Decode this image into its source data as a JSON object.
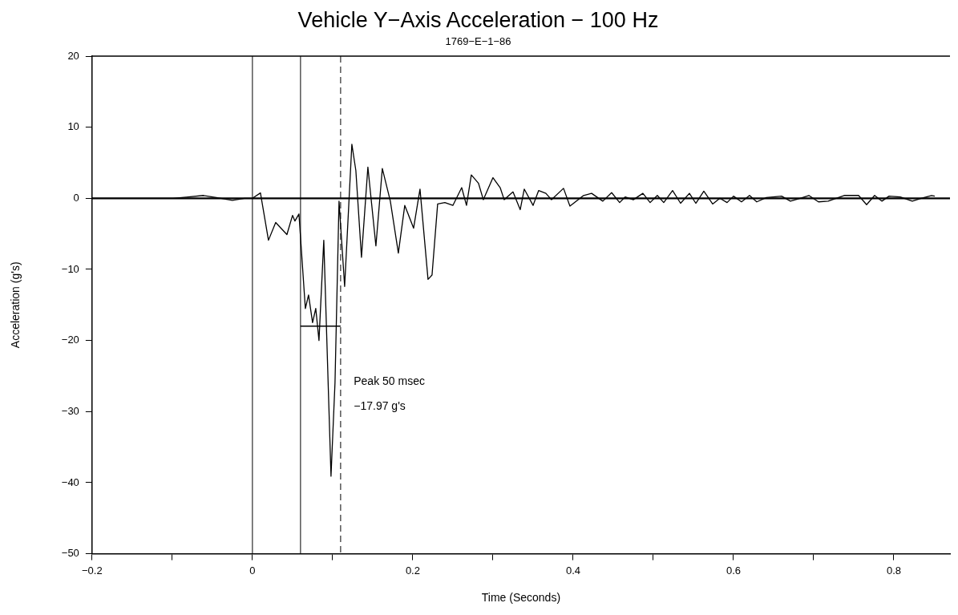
{
  "chart_data": {
    "type": "line",
    "title": "Vehicle Y−Axis Acceleration − 100 Hz",
    "subtitle": "1769−E−1−86",
    "xlabel": "Time (Seconds)",
    "ylabel": "Acceleration (g's)",
    "annotations": [
      "Peak 50 msec",
      "−17.97 g's"
    ],
    "series": [
      {
        "color": "#000000",
        "x": [
          -0.2,
          -0.15,
          -0.099,
          -0.08,
          -0.061,
          -0.045,
          -0.025,
          -0.01,
          0,
          0.01,
          0.02,
          0.029,
          0.043,
          0.05,
          0.053,
          0.058,
          0.066,
          0.07,
          0.075,
          0.079,
          0.083,
          0.089,
          0.098,
          0.103,
          0.108,
          0.115,
          0.124,
          0.129,
          0.136,
          0.144,
          0.154,
          0.162,
          0.172,
          0.182,
          0.19,
          0.201,
          0.209,
          0.219,
          0.224,
          0.231,
          0.24,
          0.25,
          0.261,
          0.267,
          0.273,
          0.282,
          0.288,
          0.3,
          0.309,
          0.314,
          0.325,
          0.334,
          0.339,
          0.35,
          0.357,
          0.366,
          0.373,
          0.388,
          0.396,
          0.413,
          0.423,
          0.437,
          0.448,
          0.458,
          0.465,
          0.475,
          0.487,
          0.496,
          0.505,
          0.513,
          0.524,
          0.534,
          0.545,
          0.553,
          0.563,
          0.574,
          0.583,
          0.592,
          0.6,
          0.61,
          0.62,
          0.629,
          0.641,
          0.66,
          0.671,
          0.683,
          0.694,
          0.706,
          0.718,
          0.738,
          0.756,
          0.766,
          0.776,
          0.785,
          0.794,
          0.808,
          0.823,
          0.834,
          0.847,
          0.851
        ],
        "values": [
          0,
          0,
          0,
          0.2,
          0.4,
          0.1,
          -0.3,
          0,
          0,
          0.75,
          -5.9,
          -3.4,
          -5.1,
          -2.4,
          -3.2,
          -2.2,
          -15.5,
          -13.6,
          -17.5,
          -15.5,
          -20,
          -5.9,
          -39.1,
          -25.9,
          -0.4,
          -12.4,
          7.6,
          3.9,
          -8.3,
          4.4,
          -6.7,
          4.2,
          -0.4,
          -7.7,
          -1,
          -4.2,
          1.3,
          -11.4,
          -10.8,
          -0.8,
          -0.6,
          -1,
          1.5,
          -1,
          3.3,
          2.1,
          -0.2,
          2.9,
          1.5,
          -0.2,
          0.9,
          -1.6,
          1.3,
          -1,
          1.1,
          0.7,
          -0.2,
          1.4,
          -1.1,
          0.4,
          0.7,
          -0.4,
          0.8,
          -0.6,
          0.2,
          -0.2,
          0.7,
          -0.6,
          0.4,
          -0.6,
          1.1,
          -0.7,
          0.7,
          -0.7,
          1,
          -0.8,
          0,
          -0.6,
          0.3,
          -0.5,
          0.4,
          -0.5,
          0.1,
          0.3,
          -0.4,
          0,
          0.4,
          -0.5,
          -0.4,
          0.4,
          0.4,
          -0.9,
          0.4,
          -0.4,
          0.3,
          0.2,
          -0.4,
          0,
          0.4,
          0.3
        ]
      },
      {
        "color": "#000000",
        "x": [
          0.06,
          0.11
        ],
        "values": [
          -17.97,
          -17.97
        ]
      }
    ],
    "ref_lines": [
      {
        "axis": "x",
        "value": 0,
        "color": "#000000"
      },
      {
        "axis": "x",
        "value": 0.06,
        "color": "#000000"
      },
      {
        "axis": "x",
        "value": 0.11,
        "color": "#000000",
        "line_style": "dashed"
      },
      {
        "axis": "y",
        "value": 0,
        "color": "#000000"
      }
    ],
    "xlim": [
      -0.2,
      0.87
    ],
    "xticks": [
      -0.2,
      {
        "value": -0.1,
        "label": null
      },
      0,
      {
        "value": 0.1,
        "label": null
      },
      0.2,
      {
        "value": 0.3,
        "label": null
      },
      0.4,
      {
        "value": 0.5,
        "label": null
      },
      0.6,
      {
        "value": 0.7,
        "label": null
      },
      0.8
    ],
    "ylim": [
      -50,
      20
    ],
    "yticks": [
      -50,
      -40,
      -30,
      -20,
      -10,
      0,
      10,
      20
    ],
    "grid": false,
    "legend": false,
    "marker": "none",
    "line_style": "solid"
  }
}
